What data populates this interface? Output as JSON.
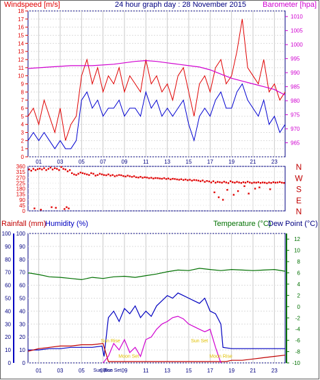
{
  "chart_data": [
    {
      "type": "line",
      "title": "24 hour graph day : 28 November 2015",
      "left_axis_label": "Windspeed [m/s]",
      "right_axis_label": "Barometer [hpa]",
      "left_ylim": [
        0,
        18
      ],
      "right_ylim": [
        960,
        1012
      ],
      "left_ticks": [
        "0",
        "1",
        "2",
        "3",
        "4",
        "5",
        "6",
        "7",
        "8",
        "9",
        "10",
        "11",
        "12",
        "13",
        "14",
        "15",
        "16",
        "17",
        "18"
      ],
      "right_ticks": [
        "965",
        "970",
        "975",
        "980",
        "985",
        "990",
        "995",
        "1000",
        "1005",
        "1010"
      ],
      "x_ticks": [
        "01",
        "03",
        "05",
        "07",
        "09",
        "11",
        "13",
        "15",
        "17",
        "19",
        "21",
        "23"
      ],
      "xlim": [
        0,
        24
      ],
      "grid": true,
      "colors": {
        "wind_gust": "#e00000",
        "wind_avg": "#0000d0",
        "barometer": "#d000d0",
        "frame": "#000080"
      },
      "series": [
        {
          "key": "wind_gust",
          "hours": [
            0.0,
            0.5,
            1.0,
            1.5,
            2.0,
            2.5,
            3.0,
            3.5,
            4.0,
            4.5,
            5.0,
            5.5,
            6.0,
            6.5,
            7.0,
            7.5,
            8.0,
            8.5,
            9.0,
            9.5,
            10.0,
            10.5,
            11.0,
            11.5,
            12.0,
            12.5,
            13.0,
            13.5,
            14.0,
            14.5,
            15.0,
            15.5,
            16.0,
            16.5,
            17.0,
            17.5,
            18.0,
            18.5,
            19.0,
            19.5,
            20.0,
            20.5,
            21.0,
            21.5,
            22.0,
            22.5,
            23.0,
            23.5,
            24.0
          ],
          "values": [
            5,
            6,
            4,
            7,
            5,
            3,
            6,
            2,
            4,
            5,
            10,
            12,
            9,
            11,
            8,
            10,
            9,
            11,
            8,
            10,
            9,
            8,
            12,
            9,
            10,
            8,
            9,
            7,
            10,
            11,
            8,
            5,
            9,
            10,
            8,
            11,
            12,
            9,
            10,
            13,
            17,
            11,
            10,
            9,
            12,
            8,
            9,
            7,
            8
          ]
        },
        {
          "key": "wind_avg",
          "hours": [
            0.0,
            0.5,
            1.0,
            1.5,
            2.0,
            2.5,
            3.0,
            3.5,
            4.0,
            4.5,
            5.0,
            5.5,
            6.0,
            6.5,
            7.0,
            7.5,
            8.0,
            8.5,
            9.0,
            9.5,
            10.0,
            10.5,
            11.0,
            11.5,
            12.0,
            12.5,
            13.0,
            13.5,
            14.0,
            14.5,
            15.0,
            15.5,
            16.0,
            16.5,
            17.0,
            17.5,
            18.0,
            18.5,
            19.0,
            19.5,
            20.0,
            20.5,
            21.0,
            21.5,
            22.0,
            22.5,
            23.0,
            23.5,
            24.0
          ],
          "values": [
            2,
            3,
            2,
            3,
            2,
            1,
            2,
            1,
            1,
            2,
            7,
            8,
            6,
            7,
            5,
            6,
            6,
            7,
            5,
            6,
            6,
            5,
            8,
            6,
            7,
            5,
            6,
            5,
            6,
            7,
            4,
            2,
            5,
            6,
            5,
            7,
            8,
            6,
            6,
            8,
            9,
            7,
            6,
            5,
            7,
            4,
            5,
            3,
            4
          ]
        },
        {
          "key": "barometer",
          "hours": [
            0,
            2,
            4,
            6,
            8,
            10,
            11,
            12,
            13,
            14,
            15,
            16,
            17,
            18,
            19,
            20,
            21,
            22,
            23,
            24
          ],
          "values": [
            991.5,
            992,
            992.5,
            992.5,
            993,
            994,
            994.3,
            994,
            993.5,
            993,
            992.5,
            992,
            991,
            989.5,
            988,
            987,
            986,
            985,
            984,
            982
          ]
        }
      ]
    },
    {
      "type": "scatter",
      "right_labels": [
        "N",
        "W",
        "S",
        "E",
        "N"
      ],
      "left_ticks": [
        "360",
        "315",
        "270",
        "225",
        "180",
        "135",
        "90",
        "45",
        "0"
      ],
      "ylim": [
        0,
        360
      ],
      "xlim": [
        0,
        24
      ],
      "colors": {
        "points": "#e00000"
      },
      "series": [
        {
          "key": "wind_direction",
          "hours": [
            0.1,
            0.3,
            0.5,
            0.7,
            0.9,
            1.1,
            1.3,
            1.5,
            1.7,
            1.9,
            2.1,
            2.3,
            2.5,
            2.7,
            2.9,
            3.1,
            3.3,
            3.5,
            3.7,
            3.9,
            4.1,
            4.3,
            4.5,
            4.7,
            4.9,
            5.1,
            5.3,
            5.5,
            5.7,
            5.9,
            6.1,
            6.3,
            6.5,
            6.7,
            6.9,
            7.1,
            7.3,
            7.5,
            7.7,
            7.9,
            8.1,
            8.3,
            8.5,
            8.7,
            8.9,
            9.1,
            9.3,
            9.5,
            9.7,
            9.9,
            10.1,
            10.3,
            10.5,
            10.7,
            10.9,
            11.1,
            11.3,
            11.5,
            11.7,
            11.9,
            12.1,
            12.3,
            12.5,
            12.7,
            12.9,
            13.1,
            13.3,
            13.5,
            13.7,
            13.9,
            14.1,
            14.3,
            14.5,
            14.7,
            14.9,
            15.1,
            15.3,
            15.5,
            15.7,
            15.9,
            16.1,
            16.3,
            16.5,
            16.7,
            16.9,
            17.1,
            17.3,
            17.5,
            17.7,
            17.9,
            18.1,
            18.3,
            18.5,
            18.7,
            18.9,
            19.1,
            19.3,
            19.5,
            19.7,
            19.9,
            20.1,
            20.3,
            20.5,
            20.7,
            20.9,
            21.1,
            21.3,
            21.5,
            21.7,
            21.9,
            22.1,
            22.3,
            22.5,
            22.7,
            22.9,
            23.1,
            23.3,
            23.5,
            23.7,
            23.9,
            0.6,
            1.2,
            2.2,
            2.6,
            3.4,
            3.6,
            3.8,
            17.4,
            17.8,
            18.2,
            18.6,
            19.2,
            19.6,
            20.2,
            20.6,
            21.2,
            21.6,
            22.6
          ],
          "values": [
            335,
            325,
            340,
            330,
            338,
            342,
            335,
            345,
            330,
            340,
            350,
            335,
            345,
            340,
            330,
            355,
            340,
            335,
            320,
            330,
            305,
            295,
            290,
            300,
            310,
            305,
            300,
            295,
            290,
            305,
            300,
            285,
            290,
            300,
            295,
            290,
            288,
            295,
            285,
            290,
            280,
            285,
            290,
            288,
            282,
            278,
            285,
            280,
            275,
            280,
            272,
            270,
            275,
            268,
            272,
            270,
            265,
            268,
            262,
            266,
            265,
            262,
            260,
            265,
            258,
            262,
            255,
            260,
            258,
            255,
            252,
            256,
            250,
            254,
            248,
            252,
            245,
            250,
            248,
            245,
            240,
            246,
            235,
            242,
            238,
            230,
            240,
            228,
            235,
            232,
            228,
            236,
            230,
            225,
            240,
            232,
            228,
            235,
            230,
            226,
            232,
            228,
            236,
            230,
            225,
            230,
            228,
            232,
            226,
            230,
            228,
            224,
            230,
            226,
            232,
            228,
            230,
            234,
            228,
            226,
            20,
            10,
            30,
            25,
            15,
            30,
            20,
            150,
            110,
            90,
            170,
            130,
            160,
            200,
            140,
            180,
            190,
            175
          ]
        }
      ]
    },
    {
      "type": "line",
      "left_axis_label": "Rainfall (mm)",
      "left_axis_label2": "Humidity (%)",
      "right_axis_label": "Temperature (°C)",
      "right_axis_label2": "Dew Point (°C)",
      "left_ticks": [
        "0",
        "10",
        "20",
        "30",
        "40",
        "50",
        "60",
        "70",
        "80",
        "90",
        "100"
      ],
      "left_ticks_inner": [
        "0",
        "10",
        "20",
        "30",
        "40",
        "50",
        "60",
        "70",
        "80",
        "90",
        "100"
      ],
      "right_ticks": [
        "-10",
        "-8",
        "-6",
        "-4",
        "-2",
        "0",
        "2",
        "4",
        "6",
        "8",
        "10",
        "12"
      ],
      "ylim": [
        0,
        100
      ],
      "right_ylim": [
        -10,
        13
      ],
      "xlim": [
        0,
        24
      ],
      "x_ticks": [
        "01",
        "03",
        "05",
        "07",
        "09",
        "11",
        "13",
        "15",
        "17",
        "19",
        "21",
        "23"
      ],
      "grid": true,
      "annotations": [
        {
          "text": "Sun Rise",
          "hour": 7.7,
          "value": 16,
          "color": "#e0c000"
        },
        {
          "text": "Moon Set",
          "hour": 9.4,
          "value": 4,
          "color": "#e0c000"
        },
        {
          "text": "Sun Set",
          "hour": 16.0,
          "value": 16,
          "color": "#e0c000"
        },
        {
          "text": "Moon Rise",
          "hour": 18.0,
          "value": 4,
          "color": "#e0c000"
        },
        {
          "text": "Sun Rise",
          "hour": 7.0,
          "value": -7,
          "color": "#000080"
        },
        {
          "text": "Sun Set",
          "hour": 7.9,
          "value": -7,
          "color": "#000080"
        }
      ],
      "colors": {
        "temperature": "#007000",
        "dewpoint_humidity": "#0000c0",
        "rain": "#c00000",
        "solar": "#d000d0",
        "right_axis": "#007000"
      },
      "series": [
        {
          "key": "temperature",
          "unit": "C",
          "hours": [
            0,
            1,
            2,
            3,
            4,
            5,
            6,
            7,
            8,
            9,
            10,
            11,
            12,
            13,
            14,
            15,
            16,
            17,
            18,
            19,
            20,
            21,
            22,
            23,
            24
          ],
          "values": [
            6.0,
            5.7,
            5.3,
            5.2,
            5.0,
            4.8,
            5.2,
            5.0,
            5.3,
            5.4,
            5.2,
            5.5,
            5.8,
            6.2,
            6.5,
            6.4,
            6.8,
            6.6,
            6.4,
            6.6,
            6.5,
            6.4,
            6.5,
            6.6,
            6.3
          ]
        },
        {
          "key": "humidity",
          "unit": "%",
          "hours": [
            0,
            1,
            2,
            3,
            4,
            5,
            6,
            6.9,
            7.1,
            7.5,
            8,
            8.5,
            9,
            9.5,
            10,
            10.5,
            11,
            11.5,
            12,
            12.5,
            13,
            13.5,
            14,
            14.5,
            15,
            15.5,
            16,
            16.5,
            17,
            17.5,
            18,
            18.2,
            19,
            20,
            21,
            22,
            23,
            24
          ],
          "values": [
            10,
            10,
            11,
            11,
            12,
            12,
            12,
            13,
            5,
            35,
            40,
            32,
            42,
            38,
            44,
            35,
            40,
            36,
            44,
            48,
            52,
            50,
            54,
            52,
            50,
            48,
            46,
            50,
            40,
            38,
            30,
            12,
            11,
            11,
            11,
            11,
            11,
            11
          ]
        },
        {
          "key": "rain",
          "unit": "mm",
          "hours": [
            0,
            1,
            2,
            3,
            4,
            5,
            6,
            7,
            7.5,
            8,
            10,
            12,
            14,
            16,
            18,
            18.5,
            19,
            20,
            21,
            22,
            23,
            24
          ],
          "values": [
            9,
            11,
            12,
            13,
            13,
            14,
            14,
            15,
            1,
            1,
            1,
            1,
            1,
            1,
            1,
            1,
            2,
            2,
            3,
            4,
            5,
            6
          ]
        },
        {
          "key": "solar",
          "unit": "",
          "hours": [
            7,
            7.5,
            8,
            8.5,
            9,
            9.5,
            10,
            10.5,
            11,
            11.5,
            12,
            12.5,
            13,
            13.5,
            14,
            14.5,
            15,
            15.5,
            16,
            16.5,
            17,
            17.5,
            18
          ],
          "values": [
            0,
            5,
            15,
            10,
            18,
            8,
            12,
            5,
            18,
            20,
            26,
            30,
            32,
            35,
            36,
            34,
            30,
            28,
            26,
            24,
            26,
            12,
            0
          ]
        }
      ]
    }
  ]
}
